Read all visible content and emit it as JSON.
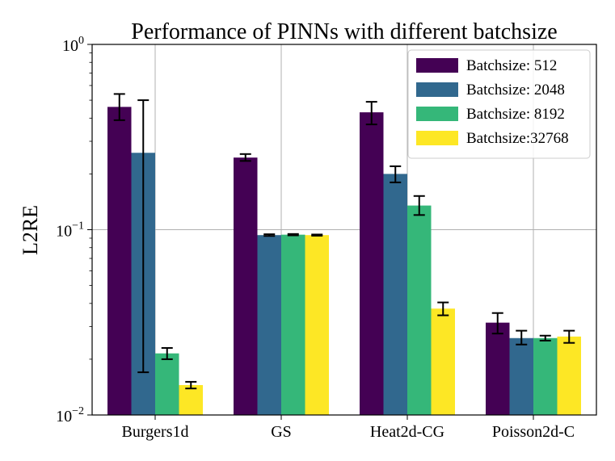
{
  "chart_data": {
    "type": "bar",
    "title": "Performance of PINNs with different batchsize",
    "xlabel": "",
    "ylabel": "L2RE",
    "yscale": "log",
    "ylim": [
      0.01,
      1
    ],
    "grid": true,
    "legend_position": "top-right",
    "categories": [
      "Burgers1d",
      "GS",
      "Heat2d-CG",
      "Poisson2d-C"
    ],
    "y_ticks": [
      {
        "value": 0.01,
        "base": "10",
        "exp": "−2"
      },
      {
        "value": 0.1,
        "base": "10",
        "exp": "−1"
      },
      {
        "value": 1,
        "base": "10",
        "exp": "0"
      }
    ],
    "series": [
      {
        "name": "Batchsize: 512",
        "color": "#440154",
        "values": [
          0.46,
          0.245,
          0.43,
          0.0315
        ],
        "err_low": [
          0.39,
          0.235,
          0.37,
          0.0275
        ],
        "err_high": [
          0.54,
          0.256,
          0.49,
          0.0355
        ]
      },
      {
        "name": "Batchsize: 2048",
        "color": "#31688e",
        "values": [
          0.26,
          0.0935,
          0.2,
          0.026
        ],
        "err_low": [
          0.017,
          0.0925,
          0.18,
          0.024
        ],
        "err_high": [
          0.5,
          0.0945,
          0.22,
          0.0285
        ]
      },
      {
        "name": "Batchsize: 8192",
        "color": "#35b779",
        "values": [
          0.0215,
          0.094,
          0.135,
          0.026
        ],
        "err_low": [
          0.02,
          0.0932,
          0.12,
          0.0252
        ],
        "err_high": [
          0.023,
          0.0948,
          0.152,
          0.0268
        ]
      },
      {
        "name": "Batchsize:32768",
        "color": "#fde725",
        "values": [
          0.0145,
          0.0935,
          0.0375,
          0.0265
        ],
        "err_low": [
          0.0139,
          0.0928,
          0.0345,
          0.0245
        ],
        "err_high": [
          0.0151,
          0.0942,
          0.0405,
          0.0285
        ]
      }
    ]
  }
}
